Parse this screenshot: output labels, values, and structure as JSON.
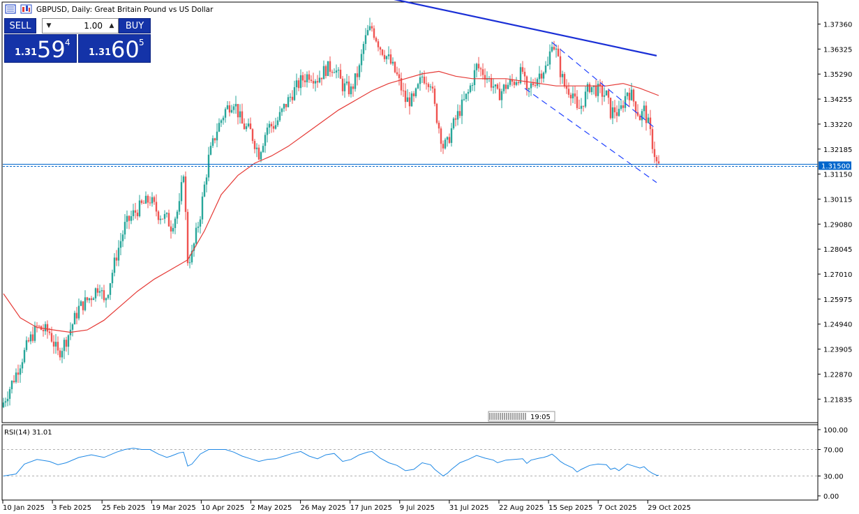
{
  "header": {
    "title": "GBPUSD, Daily:  Great Britain Pound vs US Dollar"
  },
  "trade_panel": {
    "sell_label": "SELL",
    "buy_label": "BUY",
    "lot": "1.00",
    "sell": {
      "prefix": "1.31",
      "big": "59",
      "sup": "4"
    },
    "buy": {
      "prefix": "1.31",
      "big": "60",
      "sup": "5"
    }
  },
  "price_axis": {
    "labels": [
      "1.37360",
      "1.36325",
      "1.35290",
      "1.34255",
      "1.33220",
      "1.32185",
      "1.31150",
      "1.30115",
      "1.29080",
      "1.28045",
      "1.27010",
      "1.25975",
      "1.24940",
      "1.23905",
      "1.22870",
      "1.21835"
    ],
    "current_price_label": "1.31500"
  },
  "time_axis": {
    "labels": [
      "10 Jan 2025",
      "3 Feb 2025",
      "25 Feb 2025",
      "19 Mar 2025",
      "10 Apr 2025",
      "2 May 2025",
      "26 May 2025",
      "17 Jun 2025",
      "9 Jul 2025",
      "31 Jul 2025",
      "22 Aug 2025",
      "15 Sep 2025",
      "7 Oct 2025",
      "29 Oct 2025"
    ]
  },
  "timer": {
    "label": "19:05"
  },
  "rsi": {
    "label": "RSI(14) 31.01",
    "axis_labels": [
      "100.00",
      "70.00",
      "30.00",
      "0.00"
    ]
  },
  "colors": {
    "bull": "#26a69a",
    "bear": "#ef5350",
    "ma": "#e53935",
    "trendline": "#1a2fd6",
    "channel": "#1e40ff",
    "rsi": "#1e88e5",
    "price_line": "#0066cc",
    "panel_blue": "#1433a8"
  },
  "chart_data": {
    "type": "candlestick",
    "symbol": "GBPUSD",
    "timeframe": "Daily",
    "ylim": [
      1.211,
      1.38
    ],
    "close_path": [
      [
        0,
        1.217
      ],
      [
        6,
        1.229
      ],
      [
        12,
        1.242
      ],
      [
        16,
        1.248
      ],
      [
        22,
        1.246
      ],
      [
        26,
        1.237
      ],
      [
        30,
        1.243
      ],
      [
        36,
        1.256
      ],
      [
        42,
        1.261
      ],
      [
        46,
        1.266
      ],
      [
        48,
        1.258
      ],
      [
        50,
        1.264
      ],
      [
        54,
        1.278
      ],
      [
        58,
        1.29
      ],
      [
        62,
        1.295
      ],
      [
        66,
        1.2985
      ],
      [
        70,
        1.301
      ],
      [
        74,
        1.295
      ],
      [
        78,
        1.293
      ],
      [
        80,
        1.29
      ],
      [
        84,
        1.298
      ],
      [
        86,
        1.313
      ],
      [
        88,
        1.276
      ],
      [
        90,
        1.278
      ],
      [
        94,
        1.295
      ],
      [
        98,
        1.318
      ],
      [
        102,
        1.33
      ],
      [
        106,
        1.338
      ],
      [
        110,
        1.342
      ],
      [
        114,
        1.332
      ],
      [
        118,
        1.329
      ],
      [
        122,
        1.32
      ],
      [
        126,
        1.331
      ],
      [
        130,
        1.332
      ],
      [
        134,
        1.339
      ],
      [
        138,
        1.345
      ],
      [
        142,
        1.35
      ],
      [
        146,
        1.353
      ],
      [
        150,
        1.351
      ],
      [
        154,
        1.355
      ],
      [
        158,
        1.356
      ],
      [
        162,
        1.348
      ],
      [
        166,
        1.346
      ],
      [
        170,
        1.355
      ],
      [
        172,
        1.365
      ],
      [
        174,
        1.37
      ],
      [
        176,
        1.372
      ],
      [
        178,
        1.368
      ],
      [
        180,
        1.364
      ],
      [
        184,
        1.359
      ],
      [
        188,
        1.352
      ],
      [
        192,
        1.342
      ],
      [
        196,
        1.342
      ],
      [
        200,
        1.352
      ],
      [
        204,
        1.35
      ],
      [
        206,
        1.339
      ],
      [
        210,
        1.323
      ],
      [
        212,
        1.324
      ],
      [
        214,
        1.33
      ],
      [
        218,
        1.338
      ],
      [
        222,
        1.345
      ],
      [
        226,
        1.356
      ],
      [
        230,
        1.353
      ],
      [
        234,
        1.348
      ],
      [
        236,
        1.344
      ],
      [
        240,
        1.348
      ],
      [
        244,
        1.35
      ],
      [
        248,
        1.354
      ],
      [
        250,
        1.344
      ],
      [
        252,
        1.348
      ],
      [
        256,
        1.353
      ],
      [
        258,
        1.355
      ],
      [
        260,
        1.356
      ],
      [
        262,
        1.367
      ],
      [
        264,
        1.362
      ],
      [
        266,
        1.354
      ],
      [
        268,
        1.348
      ],
      [
        272,
        1.345
      ],
      [
        274,
        1.337
      ],
      [
        276,
        1.34
      ],
      [
        280,
        1.348
      ],
      [
        284,
        1.346
      ],
      [
        288,
        1.344
      ],
      [
        290,
        1.337
      ],
      [
        292,
        1.338
      ],
      [
        294,
        1.336
      ],
      [
        298,
        1.346
      ],
      [
        300,
        1.344
      ],
      [
        304,
        1.335
      ],
      [
        306,
        1.338
      ],
      [
        308,
        1.332
      ],
      [
        310,
        1.324
      ],
      [
        312,
        1.316
      ],
      [
        313,
        1.315
      ]
    ],
    "moving_average_path": [
      [
        0,
        1.262
      ],
      [
        8,
        1.252
      ],
      [
        16,
        1.248
      ],
      [
        24,
        1.247
      ],
      [
        32,
        1.246
      ],
      [
        40,
        1.247
      ],
      [
        48,
        1.251
      ],
      [
        56,
        1.257
      ],
      [
        64,
        1.263
      ],
      [
        72,
        1.268
      ],
      [
        80,
        1.272
      ],
      [
        88,
        1.276
      ],
      [
        96,
        1.288
      ],
      [
        104,
        1.303
      ],
      [
        112,
        1.311
      ],
      [
        120,
        1.316
      ],
      [
        128,
        1.319
      ],
      [
        136,
        1.323
      ],
      [
        144,
        1.328
      ],
      [
        152,
        1.333
      ],
      [
        160,
        1.338
      ],
      [
        168,
        1.342
      ],
      [
        176,
        1.346
      ],
      [
        184,
        1.349
      ],
      [
        192,
        1.351
      ],
      [
        200,
        1.353
      ],
      [
        208,
        1.354
      ],
      [
        216,
        1.352
      ],
      [
        224,
        1.351
      ],
      [
        232,
        1.351
      ],
      [
        240,
        1.351
      ],
      [
        248,
        1.35
      ],
      [
        256,
        1.349
      ],
      [
        264,
        1.348
      ],
      [
        272,
        1.348
      ],
      [
        280,
        1.348
      ],
      [
        288,
        1.348
      ],
      [
        296,
        1.349
      ],
      [
        304,
        1.347
      ],
      [
        313,
        1.344
      ]
    ],
    "rsi_path": [
      [
        0,
        30
      ],
      [
        6,
        33
      ],
      [
        10,
        48
      ],
      [
        16,
        55
      ],
      [
        22,
        52
      ],
      [
        26,
        47
      ],
      [
        30,
        50
      ],
      [
        36,
        58
      ],
      [
        42,
        62
      ],
      [
        48,
        58
      ],
      [
        54,
        66
      ],
      [
        58,
        70
      ],
      [
        62,
        72
      ],
      [
        66,
        70
      ],
      [
        70,
        70
      ],
      [
        74,
        63
      ],
      [
        78,
        58
      ],
      [
        80,
        60
      ],
      [
        84,
        65
      ],
      [
        86,
        66
      ],
      [
        88,
        45
      ],
      [
        90,
        48
      ],
      [
        94,
        63
      ],
      [
        98,
        70
      ],
      [
        102,
        70
      ],
      [
        106,
        70
      ],
      [
        110,
        66
      ],
      [
        114,
        60
      ],
      [
        118,
        56
      ],
      [
        122,
        52
      ],
      [
        126,
        55
      ],
      [
        130,
        56
      ],
      [
        134,
        60
      ],
      [
        138,
        64
      ],
      [
        142,
        67
      ],
      [
        146,
        60
      ],
      [
        150,
        56
      ],
      [
        154,
        62
      ],
      [
        158,
        64
      ],
      [
        162,
        52
      ],
      [
        166,
        55
      ],
      [
        170,
        62
      ],
      [
        174,
        66
      ],
      [
        176,
        67
      ],
      [
        178,
        62
      ],
      [
        180,
        57
      ],
      [
        184,
        50
      ],
      [
        188,
        46
      ],
      [
        192,
        38
      ],
      [
        196,
        40
      ],
      [
        200,
        50
      ],
      [
        204,
        47
      ],
      [
        206,
        40
      ],
      [
        210,
        30
      ],
      [
        212,
        34
      ],
      [
        214,
        40
      ],
      [
        218,
        50
      ],
      [
        222,
        55
      ],
      [
        226,
        61
      ],
      [
        230,
        57
      ],
      [
        234,
        54
      ],
      [
        236,
        50
      ],
      [
        240,
        54
      ],
      [
        244,
        55
      ],
      [
        248,
        56
      ],
      [
        250,
        49
      ],
      [
        252,
        54
      ],
      [
        256,
        57
      ],
      [
        258,
        58
      ],
      [
        260,
        60
      ],
      [
        262,
        63
      ],
      [
        264,
        58
      ],
      [
        266,
        52
      ],
      [
        268,
        48
      ],
      [
        272,
        42
      ],
      [
        274,
        36
      ],
      [
        276,
        40
      ],
      [
        280,
        46
      ],
      [
        284,
        48
      ],
      [
        288,
        47
      ],
      [
        290,
        40
      ],
      [
        292,
        42
      ],
      [
        294,
        38
      ],
      [
        298,
        48
      ],
      [
        300,
        46
      ],
      [
        304,
        42
      ],
      [
        306,
        44
      ],
      [
        308,
        38
      ],
      [
        310,
        34
      ],
      [
        312,
        31
      ],
      [
        313,
        31
      ]
    ],
    "rsi_levels": [
      70,
      30
    ],
    "rsi_ylim": [
      0,
      100
    ],
    "current_price": 1.315,
    "resistance_line": {
      "from": [
        175,
        1.386
      ],
      "to": [
        312,
        1.3605
      ]
    },
    "channel_upper": {
      "from": [
        262,
        1.366
      ],
      "to": [
        312,
        1.33
      ]
    },
    "channel_lower": {
      "from": [
        249,
        1.347
      ],
      "to": [
        312,
        1.308
      ]
    }
  }
}
